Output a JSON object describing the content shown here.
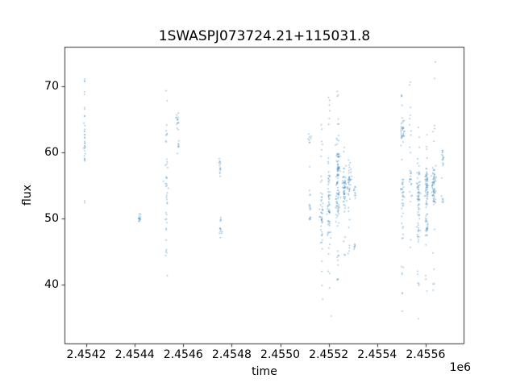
{
  "chart_data": {
    "type": "scatter",
    "title": "1SWASPJ073724.21+115031.8",
    "xlabel": "time",
    "ylabel": "flux",
    "x_offset_label": "1e6",
    "xlim": [
      2454110,
      2455760
    ],
    "ylim": [
      31,
      76
    ],
    "xticks": [
      2454200,
      2454400,
      2454600,
      2454800,
      2455000,
      2455200,
      2455400,
      2455600
    ],
    "xtick_labels": [
      "2.4542",
      "2.4544",
      "2.4546",
      "2.4548",
      "2.4550",
      "2.4552",
      "2.4554",
      "2.4556"
    ],
    "yticks": [
      40,
      50,
      60,
      70
    ],
    "ytick_labels": [
      "40",
      "50",
      "60",
      "70"
    ],
    "grid": false,
    "legend": "none",
    "marker_color": "#1f77b4",
    "marker_alpha": 0.55,
    "marker_size_px": 1.4,
    "clusters": [
      {
        "x": 2454193,
        "sx": 1.5,
        "y": 61.3,
        "sy": 1.3,
        "n": 22,
        "d": "n"
      },
      {
        "x": 2454193,
        "sx": 1.2,
        "y": 65.2,
        "sy": 1.6,
        "n": 4,
        "d": "u"
      },
      {
        "x": 2454193,
        "sx": 1.0,
        "y": 69.1,
        "sy": 0.4,
        "n": 2,
        "d": "u"
      },
      {
        "x": 2454193,
        "sx": 1.0,
        "y": 71.0,
        "sy": 0.3,
        "n": 3,
        "d": "u"
      },
      {
        "x": 2454193,
        "sx": 1.0,
        "y": 58.9,
        "sy": 0.3,
        "n": 2,
        "d": "u"
      },
      {
        "x": 2454193,
        "sx": 1.0,
        "y": 52.6,
        "sy": 0.2,
        "n": 2,
        "d": "u"
      },
      {
        "x": 2454420,
        "sx": 3,
        "y": 50.1,
        "sy": 0.45,
        "n": 14,
        "d": "n"
      },
      {
        "x": 2454530,
        "sx": 4,
        "y": 53.5,
        "sy": 12.5,
        "n": 28,
        "d": "u"
      },
      {
        "x": 2454530,
        "sx": 4,
        "y": 56.2,
        "sy": 1.6,
        "n": 12,
        "d": "n"
      },
      {
        "x": 2454528,
        "sx": 2,
        "y": 69.3,
        "sy": 0.3,
        "n": 1,
        "d": "u"
      },
      {
        "x": 2454532,
        "sx": 2,
        "y": 67.8,
        "sy": 0.2,
        "n": 1,
        "d": "u"
      },
      {
        "x": 2454576,
        "sx": 3,
        "y": 65.0,
        "sy": 0.7,
        "n": 14,
        "d": "n"
      },
      {
        "x": 2454580,
        "sx": 2,
        "y": 61.7,
        "sy": 0.9,
        "n": 6,
        "d": "u"
      },
      {
        "x": 2454578,
        "sx": 2,
        "y": 59.9,
        "sy": 0.2,
        "n": 1,
        "d": "u"
      },
      {
        "x": 2454752,
        "sx": 3,
        "y": 58.0,
        "sy": 0.55,
        "n": 12,
        "d": "n"
      },
      {
        "x": 2454752,
        "sx": 2,
        "y": 56.5,
        "sy": 0.2,
        "n": 1,
        "d": "u"
      },
      {
        "x": 2454754,
        "sx": 3,
        "y": 48.3,
        "sy": 0.35,
        "n": 8,
        "d": "n"
      },
      {
        "x": 2454754,
        "sx": 2,
        "y": 50.0,
        "sy": 0.4,
        "n": 4,
        "d": "u"
      },
      {
        "x": 2454752,
        "sx": 2,
        "y": 47.2,
        "sy": 0.2,
        "n": 1,
        "d": "u"
      },
      {
        "x": 2455121,
        "sx": 3,
        "y": 62.1,
        "sy": 0.4,
        "n": 8,
        "d": "n"
      },
      {
        "x": 2455123,
        "sx": 3,
        "y": 51.0,
        "sy": 1.2,
        "n": 12,
        "d": "u"
      },
      {
        "x": 2455122,
        "sx": 2,
        "y": 56.5,
        "sy": 3.5,
        "n": 4,
        "d": "u"
      },
      {
        "x": 2455171,
        "sx": 4,
        "y": 51.0,
        "sy": 13.5,
        "n": 22,
        "d": "u"
      },
      {
        "x": 2455171,
        "sx": 4,
        "y": 50.6,
        "sy": 1.8,
        "n": 28,
        "d": "n"
      },
      {
        "x": 2455201,
        "sx": 4,
        "y": 52.4,
        "sy": 2.2,
        "n": 40,
        "d": "n"
      },
      {
        "x": 2455201,
        "sx": 4,
        "y": 51.5,
        "sy": 16,
        "n": 22,
        "d": "u"
      },
      {
        "x": 2455201,
        "sx": 3,
        "y": 68.0,
        "sy": 0.5,
        "n": 2,
        "d": "u"
      },
      {
        "x": 2455210,
        "sx": 1,
        "y": 35.3,
        "sy": 0.2,
        "n": 1,
        "d": "u"
      },
      {
        "x": 2455238,
        "sx": 4,
        "y": 57.6,
        "sy": 2.0,
        "n": 55,
        "d": "n"
      },
      {
        "x": 2455238,
        "sx": 4,
        "y": 52.0,
        "sy": 1.5,
        "n": 30,
        "d": "n"
      },
      {
        "x": 2455238,
        "sx": 4,
        "y": 55.0,
        "sy": 14.5,
        "n": 26,
        "d": "u"
      },
      {
        "x": 2455265,
        "sx": 4,
        "y": 54.5,
        "sy": 1.5,
        "n": 40,
        "d": "n"
      },
      {
        "x": 2455265,
        "sx": 3,
        "y": 52.8,
        "sy": 9,
        "n": 14,
        "d": "u"
      },
      {
        "x": 2455285,
        "sx": 4,
        "y": 55.6,
        "sy": 1.2,
        "n": 28,
        "d": "n"
      },
      {
        "x": 2455285,
        "sx": 3,
        "y": 53.5,
        "sy": 6.5,
        "n": 10,
        "d": "u"
      },
      {
        "x": 2455283,
        "sx": 3,
        "y": 45.3,
        "sy": 0.9,
        "n": 4,
        "d": "u"
      },
      {
        "x": 2455308,
        "sx": 2,
        "y": 54.0,
        "sy": 0.5,
        "n": 10,
        "d": "n"
      },
      {
        "x": 2455308,
        "sx": 2,
        "y": 45.8,
        "sy": 0.4,
        "n": 6,
        "d": "n"
      },
      {
        "x": 2455504,
        "sx": 4,
        "y": 63.0,
        "sy": 1.0,
        "n": 28,
        "d": "n"
      },
      {
        "x": 2455504,
        "sx": 4,
        "y": 53.8,
        "sy": 1.3,
        "n": 22,
        "d": "n"
      },
      {
        "x": 2455504,
        "sx": 4,
        "y": 52.0,
        "sy": 17,
        "n": 22,
        "d": "u"
      },
      {
        "x": 2455502,
        "sx": 2,
        "y": 69.0,
        "sy": 0.5,
        "n": 2,
        "d": "u"
      },
      {
        "x": 2455537,
        "sx": 4,
        "y": 55.0,
        "sy": 1.2,
        "n": 10,
        "d": "n"
      },
      {
        "x": 2455537,
        "sx": 4,
        "y": 57.5,
        "sy": 12.5,
        "n": 16,
        "d": "u"
      },
      {
        "x": 2455536,
        "sx": 2,
        "y": 70.3,
        "sy": 0.4,
        "n": 2,
        "d": "u"
      },
      {
        "x": 2455571,
        "sx": 4,
        "y": 53.5,
        "sy": 2.0,
        "n": 40,
        "d": "n"
      },
      {
        "x": 2455571,
        "sx": 4,
        "y": 49.5,
        "sy": 16,
        "n": 22,
        "d": "u"
      },
      {
        "x": 2455571,
        "sx": 3,
        "y": 48.0,
        "sy": 1.0,
        "n": 10,
        "d": "n"
      },
      {
        "x": 2455604,
        "sx": 4,
        "y": 55.3,
        "sy": 1.0,
        "n": 40,
        "d": "n"
      },
      {
        "x": 2455604,
        "sx": 3,
        "y": 48.8,
        "sy": 0.8,
        "n": 18,
        "d": "n"
      },
      {
        "x": 2455604,
        "sx": 4,
        "y": 49.0,
        "sy": 15,
        "n": 18,
        "d": "u"
      },
      {
        "x": 2455604,
        "sx": 3,
        "y": 52.6,
        "sy": 0.4,
        "n": 8,
        "d": "n"
      },
      {
        "x": 2455634,
        "sx": 5,
        "y": 55.0,
        "sy": 1.3,
        "n": 48,
        "d": "n"
      },
      {
        "x": 2455634,
        "sx": 4,
        "y": 52.0,
        "sy": 14,
        "n": 14,
        "d": "u"
      },
      {
        "x": 2455634,
        "sx": 3,
        "y": 52.7,
        "sy": 0.3,
        "n": 8,
        "d": "n"
      },
      {
        "x": 2455640,
        "sx": 1,
        "y": 73.8,
        "sy": 0.2,
        "n": 1,
        "d": "u"
      },
      {
        "x": 2455637,
        "sx": 1,
        "y": 71.3,
        "sy": 0.2,
        "n": 1,
        "d": "u"
      },
      {
        "x": 2455671,
        "sx": 3,
        "y": 59.4,
        "sy": 0.6,
        "n": 12,
        "d": "n"
      },
      {
        "x": 2455671,
        "sx": 2,
        "y": 58.2,
        "sy": 0.3,
        "n": 2,
        "d": "u"
      },
      {
        "x": 2455671,
        "sx": 2,
        "y": 52.9,
        "sy": 0.5,
        "n": 6,
        "d": "n"
      },
      {
        "x": 2455668,
        "sx": 2,
        "y": 56.0,
        "sy": 0.2,
        "n": 1,
        "d": "u"
      }
    ]
  }
}
